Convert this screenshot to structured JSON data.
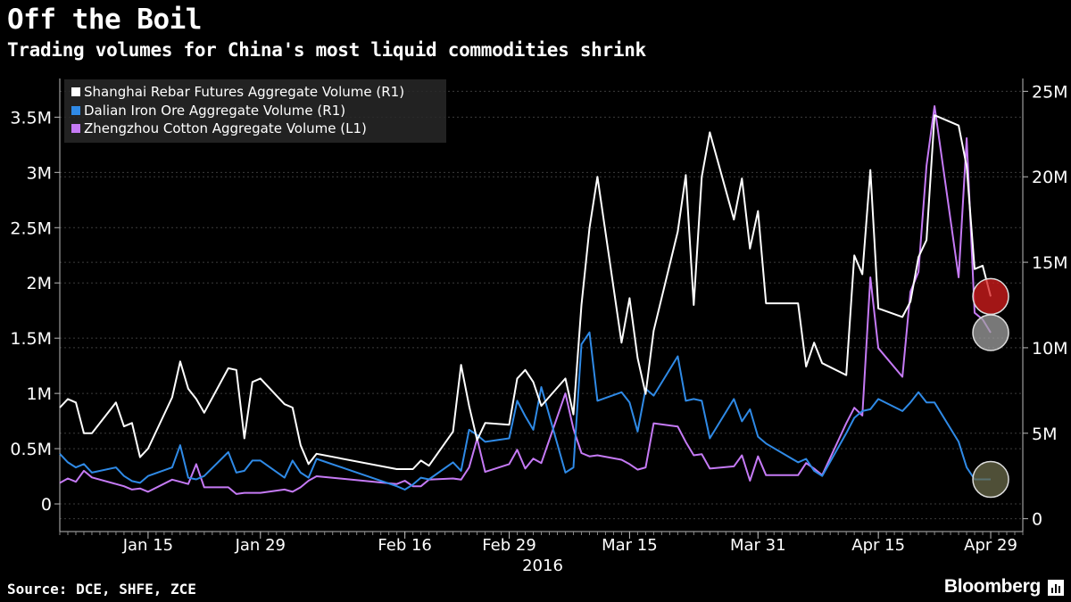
{
  "header": {
    "title": "Off the Boil",
    "subtitle": "Trading volumes for China's most liquid commodities shrink"
  },
  "footer": {
    "source": "Source: DCE, SHFE, ZCE",
    "brand": "Bloomberg"
  },
  "colors": {
    "background": "#000000",
    "rebar": "#ffffff",
    "iron_ore": "#2f8ae6",
    "cotton": "#c57af5",
    "marker_red": "#d81e1e",
    "marker_grey": "#a0a0a0",
    "marker_olive": "#6a6a4a"
  },
  "chart_data": {
    "type": "line",
    "title": "Off the Boil",
    "subtitle": "Trading volumes for China's most liquid commodities shrink",
    "x_tick_labels": [
      "Jan 15",
      "Jan 29",
      "Feb 16",
      "Feb 29",
      "Mar 15",
      "Mar 31",
      "Apr 15",
      "Apr 29"
    ],
    "x_tick_dates": [
      "2016-01-15",
      "2016-01-29",
      "2016-02-16",
      "2016-02-29",
      "2016-03-15",
      "2016-03-31",
      "2016-04-15",
      "2016-04-29"
    ],
    "x_year_label": "2016",
    "x_range": [
      "2016-01-04",
      "2016-05-03"
    ],
    "left_axis": {
      "ticks": [
        0,
        500000,
        1000000,
        1500000,
        2000000,
        2500000,
        3000000,
        3500000
      ],
      "tick_labels": [
        "0",
        "0.5M",
        "1M",
        "1.5M",
        "2M",
        "2.5M",
        "3M",
        "3.5M"
      ],
      "range": [
        -250000,
        3850000
      ]
    },
    "right_axis": {
      "ticks": [
        0,
        5000000,
        10000000,
        15000000,
        20000000,
        25000000
      ],
      "tick_labels": [
        "0",
        "5M",
        "10M",
        "15M",
        "20M",
        "25M"
      ],
      "range": [
        -750000,
        25750000
      ]
    },
    "legend": {
      "position": "top-left"
    },
    "grid": "dashed-horizontal",
    "series": [
      {
        "name": "Shanghai Rebar Futures Aggregate Volume (R1)",
        "color": "#ffffff",
        "axis": "right",
        "values": [
          [
            "2016-01-04",
            6500000
          ],
          [
            "2016-01-05",
            7000000
          ],
          [
            "2016-01-06",
            6800000
          ],
          [
            "2016-01-07",
            5000000
          ],
          [
            "2016-01-08",
            5000000
          ],
          [
            "2016-01-11",
            6800000
          ],
          [
            "2016-01-12",
            5400000
          ],
          [
            "2016-01-13",
            5600000
          ],
          [
            "2016-01-14",
            3600000
          ],
          [
            "2016-01-15",
            4100000
          ],
          [
            "2016-01-18",
            7100000
          ],
          [
            "2016-01-19",
            9200000
          ],
          [
            "2016-01-20",
            7600000
          ],
          [
            "2016-01-21",
            7000000
          ],
          [
            "2016-01-22",
            6200000
          ],
          [
            "2016-01-25",
            8800000
          ],
          [
            "2016-01-26",
            8700000
          ],
          [
            "2016-01-27",
            4700000
          ],
          [
            "2016-01-28",
            8000000
          ],
          [
            "2016-01-29",
            8200000
          ],
          [
            "2016-02-01",
            6700000
          ],
          [
            "2016-02-02",
            6500000
          ],
          [
            "2016-02-03",
            4300000
          ],
          [
            "2016-02-04",
            3200000
          ],
          [
            "2016-02-05",
            3800000
          ],
          [
            "2016-02-15",
            2900000
          ],
          [
            "2016-02-16",
            2900000
          ],
          [
            "2016-02-17",
            2900000
          ],
          [
            "2016-02-18",
            3400000
          ],
          [
            "2016-02-19",
            3100000
          ],
          [
            "2016-02-22",
            5100000
          ],
          [
            "2016-02-23",
            9000000
          ],
          [
            "2016-02-24",
            6600000
          ],
          [
            "2016-02-25",
            4600000
          ],
          [
            "2016-02-26",
            5600000
          ],
          [
            "2016-02-29",
            5500000
          ],
          [
            "2016-03-01",
            8200000
          ],
          [
            "2016-03-02",
            8700000
          ],
          [
            "2016-03-03",
            8000000
          ],
          [
            "2016-03-04",
            6600000
          ],
          [
            "2016-03-07",
            8200000
          ],
          [
            "2016-03-08",
            6100000
          ],
          [
            "2016-03-09",
            12500000
          ],
          [
            "2016-03-10",
            17000000
          ],
          [
            "2016-03-11",
            20000000
          ],
          [
            "2016-03-14",
            10300000
          ],
          [
            "2016-03-15",
            12900000
          ],
          [
            "2016-03-16",
            9400000
          ],
          [
            "2016-03-17",
            7300000
          ],
          [
            "2016-03-18",
            11000000
          ],
          [
            "2016-03-21",
            16800000
          ],
          [
            "2016-03-22",
            20100000
          ],
          [
            "2016-03-23",
            12500000
          ],
          [
            "2016-03-24",
            20000000
          ],
          [
            "2016-03-25",
            22600000
          ],
          [
            "2016-03-28",
            17500000
          ],
          [
            "2016-03-29",
            19900000
          ],
          [
            "2016-03-30",
            15800000
          ],
          [
            "2016-03-31",
            18000000
          ],
          [
            "2016-04-01",
            12600000
          ],
          [
            "2016-04-05",
            12600000
          ],
          [
            "2016-04-06",
            8900000
          ],
          [
            "2016-04-07",
            10300000
          ],
          [
            "2016-04-08",
            9100000
          ],
          [
            "2016-04-11",
            8400000
          ],
          [
            "2016-04-12",
            15400000
          ],
          [
            "2016-04-13",
            14300000
          ],
          [
            "2016-04-14",
            20400000
          ],
          [
            "2016-04-15",
            12300000
          ],
          [
            "2016-04-18",
            11800000
          ],
          [
            "2016-04-19",
            12700000
          ],
          [
            "2016-04-20",
            15300000
          ],
          [
            "2016-04-21",
            16300000
          ],
          [
            "2016-04-22",
            23600000
          ],
          [
            "2016-04-25",
            23000000
          ],
          [
            "2016-04-26",
            20600000
          ],
          [
            "2016-04-27",
            14600000
          ],
          [
            "2016-04-28",
            14800000
          ],
          [
            "2016-04-29",
            13000000
          ]
        ]
      },
      {
        "name": "Dalian Iron Ore Aggregate Volume (R1)",
        "color": "#2f8ae6",
        "axis": "right",
        "values": [
          [
            "2016-01-04",
            3800000
          ],
          [
            "2016-01-05",
            3300000
          ],
          [
            "2016-01-06",
            3000000
          ],
          [
            "2016-01-07",
            3200000
          ],
          [
            "2016-01-08",
            2700000
          ],
          [
            "2016-01-11",
            3000000
          ],
          [
            "2016-01-12",
            2500000
          ],
          [
            "2016-01-13",
            2200000
          ],
          [
            "2016-01-14",
            2100000
          ],
          [
            "2016-01-15",
            2500000
          ],
          [
            "2016-01-18",
            3000000
          ],
          [
            "2016-01-19",
            4300000
          ],
          [
            "2016-01-20",
            2400000
          ],
          [
            "2016-01-21",
            2300000
          ],
          [
            "2016-01-22",
            2500000
          ],
          [
            "2016-01-25",
            3900000
          ],
          [
            "2016-01-26",
            2700000
          ],
          [
            "2016-01-27",
            2800000
          ],
          [
            "2016-01-28",
            3400000
          ],
          [
            "2016-01-29",
            3400000
          ],
          [
            "2016-02-01",
            2400000
          ],
          [
            "2016-02-02",
            3400000
          ],
          [
            "2016-02-03",
            2700000
          ],
          [
            "2016-02-04",
            2400000
          ],
          [
            "2016-02-05",
            3500000
          ],
          [
            "2016-02-15",
            1900000
          ],
          [
            "2016-02-16",
            1700000
          ],
          [
            "2016-02-17",
            2000000
          ],
          [
            "2016-02-18",
            2400000
          ],
          [
            "2016-02-19",
            2300000
          ],
          [
            "2016-02-22",
            3300000
          ],
          [
            "2016-02-23",
            2800000
          ],
          [
            "2016-02-24",
            5200000
          ],
          [
            "2016-02-25",
            4900000
          ],
          [
            "2016-02-26",
            4500000
          ],
          [
            "2016-02-29",
            4700000
          ],
          [
            "2016-03-01",
            6900000
          ],
          [
            "2016-03-02",
            6000000
          ],
          [
            "2016-03-03",
            5200000
          ],
          [
            "2016-03-04",
            7700000
          ],
          [
            "2016-03-07",
            2700000
          ],
          [
            "2016-03-08",
            3000000
          ],
          [
            "2016-03-09",
            10200000
          ],
          [
            "2016-03-10",
            10900000
          ],
          [
            "2016-03-11",
            6900000
          ],
          [
            "2016-03-14",
            7400000
          ],
          [
            "2016-03-15",
            6800000
          ],
          [
            "2016-03-16",
            5100000
          ],
          [
            "2016-03-17",
            7600000
          ],
          [
            "2016-03-18",
            7200000
          ],
          [
            "2016-03-21",
            9500000
          ],
          [
            "2016-03-22",
            6900000
          ],
          [
            "2016-03-23",
            7000000
          ],
          [
            "2016-03-24",
            6900000
          ],
          [
            "2016-03-25",
            4700000
          ],
          [
            "2016-03-28",
            7000000
          ],
          [
            "2016-03-29",
            5700000
          ],
          [
            "2016-03-30",
            6400000
          ],
          [
            "2016-03-31",
            4800000
          ],
          [
            "2016-04-01",
            4400000
          ],
          [
            "2016-04-05",
            3300000
          ],
          [
            "2016-04-06",
            3500000
          ],
          [
            "2016-04-07",
            2800000
          ],
          [
            "2016-04-08",
            2500000
          ],
          [
            "2016-04-11",
            5000000
          ],
          [
            "2016-04-12",
            5900000
          ],
          [
            "2016-04-13",
            6300000
          ],
          [
            "2016-04-14",
            6400000
          ],
          [
            "2016-04-15",
            7000000
          ],
          [
            "2016-04-18",
            6300000
          ],
          [
            "2016-04-19",
            6800000
          ],
          [
            "2016-04-20",
            7400000
          ],
          [
            "2016-04-21",
            6800000
          ],
          [
            "2016-04-22",
            6800000
          ],
          [
            "2016-04-25",
            4500000
          ],
          [
            "2016-04-26",
            3000000
          ],
          [
            "2016-04-27",
            2300000
          ],
          [
            "2016-04-28",
            2300000
          ],
          [
            "2016-04-29",
            2300000
          ]
        ]
      },
      {
        "name": "Zhengzhou Cotton Aggregate Volume (L1)",
        "color": "#c57af5",
        "axis": "left",
        "values": [
          [
            "2016-01-04",
            190000
          ],
          [
            "2016-01-05",
            230000
          ],
          [
            "2016-01-06",
            200000
          ],
          [
            "2016-01-07",
            300000
          ],
          [
            "2016-01-08",
            240000
          ],
          [
            "2016-01-11",
            180000
          ],
          [
            "2016-01-12",
            160000
          ],
          [
            "2016-01-13",
            130000
          ],
          [
            "2016-01-14",
            140000
          ],
          [
            "2016-01-15",
            110000
          ],
          [
            "2016-01-18",
            220000
          ],
          [
            "2016-01-19",
            200000
          ],
          [
            "2016-01-20",
            180000
          ],
          [
            "2016-01-21",
            360000
          ],
          [
            "2016-01-22",
            150000
          ],
          [
            "2016-01-25",
            150000
          ],
          [
            "2016-01-26",
            90000
          ],
          [
            "2016-01-27",
            100000
          ],
          [
            "2016-01-28",
            100000
          ],
          [
            "2016-01-29",
            100000
          ],
          [
            "2016-02-01",
            130000
          ],
          [
            "2016-02-02",
            110000
          ],
          [
            "2016-02-03",
            150000
          ],
          [
            "2016-02-04",
            210000
          ],
          [
            "2016-02-05",
            250000
          ],
          [
            "2016-02-15",
            180000
          ],
          [
            "2016-02-16",
            210000
          ],
          [
            "2016-02-17",
            160000
          ],
          [
            "2016-02-18",
            160000
          ],
          [
            "2016-02-19",
            220000
          ],
          [
            "2016-02-22",
            230000
          ],
          [
            "2016-02-23",
            220000
          ],
          [
            "2016-02-24",
            330000
          ],
          [
            "2016-02-25",
            590000
          ],
          [
            "2016-02-26",
            290000
          ],
          [
            "2016-02-29",
            360000
          ],
          [
            "2016-03-01",
            490000
          ],
          [
            "2016-03-02",
            320000
          ],
          [
            "2016-03-03",
            410000
          ],
          [
            "2016-03-04",
            370000
          ],
          [
            "2016-03-07",
            1000000
          ],
          [
            "2016-03-08",
            680000
          ],
          [
            "2016-03-09",
            460000
          ],
          [
            "2016-03-10",
            430000
          ],
          [
            "2016-03-11",
            440000
          ],
          [
            "2016-03-14",
            400000
          ],
          [
            "2016-03-15",
            360000
          ],
          [
            "2016-03-16",
            310000
          ],
          [
            "2016-03-17",
            330000
          ],
          [
            "2016-03-18",
            730000
          ],
          [
            "2016-03-21",
            700000
          ],
          [
            "2016-03-22",
            560000
          ],
          [
            "2016-03-23",
            440000
          ],
          [
            "2016-03-24",
            450000
          ],
          [
            "2016-03-25",
            320000
          ],
          [
            "2016-03-28",
            340000
          ],
          [
            "2016-03-29",
            440000
          ],
          [
            "2016-03-30",
            210000
          ],
          [
            "2016-03-31",
            430000
          ],
          [
            "2016-04-01",
            260000
          ],
          [
            "2016-04-05",
            260000
          ],
          [
            "2016-04-06",
            370000
          ],
          [
            "2016-04-07",
            320000
          ],
          [
            "2016-04-08",
            260000
          ],
          [
            "2016-04-11",
            730000
          ],
          [
            "2016-04-12",
            870000
          ],
          [
            "2016-04-13",
            800000
          ],
          [
            "2016-04-14",
            2050000
          ],
          [
            "2016-04-15",
            1410000
          ],
          [
            "2016-04-18",
            1150000
          ],
          [
            "2016-04-19",
            1920000
          ],
          [
            "2016-04-20",
            2100000
          ],
          [
            "2016-04-21",
            3060000
          ],
          [
            "2016-04-22",
            3600000
          ],
          [
            "2016-04-25",
            2050000
          ],
          [
            "2016-04-26",
            3310000
          ],
          [
            "2016-04-27",
            1730000
          ],
          [
            "2016-04-28",
            1670000
          ],
          [
            "2016-04-29",
            1550000
          ]
        ]
      }
    ],
    "markers": [
      {
        "series": "Shanghai Rebar Futures Aggregate Volume (R1)",
        "date": "2016-04-29",
        "value": 13000000,
        "color": "#d81e1e"
      },
      {
        "series": "Zhengzhou Cotton Aggregate Volume (L1)",
        "date": "2016-04-29",
        "value": 1550000,
        "color": "#a0a0a0"
      },
      {
        "series": "Dalian Iron Ore Aggregate Volume (R1)",
        "date": "2016-04-29",
        "value": 2300000,
        "color": "#6a6a4a"
      }
    ]
  }
}
